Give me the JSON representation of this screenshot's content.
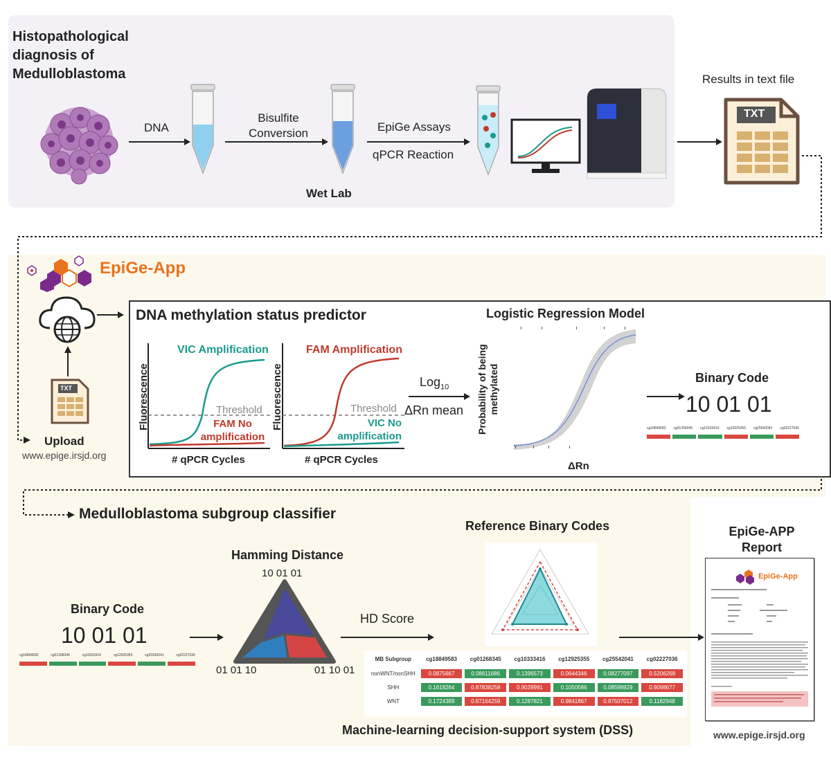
{
  "top": {
    "title": "Histopathological diagnosis of Medulloblastoma",
    "title_lines": [
      "Histopathological",
      "diagnosis of",
      "Medulloblastoma"
    ],
    "step_dna": "DNA",
    "step_bisulfite_1": "Bisulfite",
    "step_bisulfite_2": "Conversion",
    "step_epige": "EpiGe Assays",
    "step_qpcr": "qPCR Reaction",
    "wet_lab": "Wet Lab",
    "results_label": "Results in text file",
    "txt_label": "TXT"
  },
  "app": {
    "logo_text": "EpiGe-App",
    "upload_label": "Upload",
    "upload_url": "www.epige.irsjd.org",
    "txt_label": "TXT",
    "predictor_title": "DNA methylation status predictor",
    "vic_title": "VIC Amplification",
    "fam_title": "FAM Amplification",
    "y_label": "Fluorescence",
    "x_label": "# qPCR Cycles",
    "threshold": "Threshold",
    "fam_no_amp_1": "FAM No",
    "fam_no_amp_2": "amplification",
    "vic_no_amp_1": "VIC No",
    "vic_no_amp_2": "amplification",
    "log_label": "Log",
    "log_sub": "10",
    "drn_mean": "ΔRn mean",
    "lr_title": "Logistic Regression Model",
    "lr_ylabel_1": "Probability of being",
    "lr_ylabel_2": "methylated",
    "lr_xlabel": "ΔRn",
    "binary_code_title": "Binary Code",
    "binary_code_value": "10 01 01"
  },
  "classifier": {
    "title": "Medulloblastoma subgroup classifier",
    "binary_code_title": "Binary Code",
    "binary_code_value": "10 01 01",
    "hamming_title": "Hamming Distance",
    "tri_top": "10 01 01",
    "tri_left": "01 01 10",
    "tri_right": "01 10 01",
    "hd_score": "HD Score",
    "ref_title": "Reference Binary Codes",
    "report_title_1": "EpiGe-APP",
    "report_title_2": "Report",
    "report_logo": "EpiGe-App",
    "dss_title": "Machine-learning decision-support system (DSS)",
    "footer_url": "www.epige.irsjd.org"
  },
  "dss_table": {
    "headers": [
      "MB Subgroup",
      "cg18849583",
      "cg01268345",
      "cg10333416",
      "cg12925355",
      "cg25542041",
      "cg02227036"
    ],
    "rows": [
      {
        "label": "nonWNT/nonSHH",
        "values": [
          "0.0875667",
          "0.08611686",
          "0.1396573",
          "0.0644346",
          "0.08277097",
          "0.5206268"
        ],
        "colors": [
          "red",
          "green",
          "green",
          "red",
          "green",
          "red"
        ]
      },
      {
        "label": "SHH",
        "values": [
          "0.1618264",
          "0.87838258",
          "0.9039991",
          "0.1050586",
          "0.08598929",
          "0.9098677"
        ],
        "colors": [
          "green",
          "red",
          "red",
          "green",
          "green",
          "red"
        ]
      },
      {
        "label": "WNT",
        "values": [
          "0.1724389",
          "0.87164259",
          "0.1287821",
          "0.9841867",
          "0.87507012",
          "0.1182948"
        ],
        "colors": [
          "green",
          "red",
          "green",
          "red",
          "red",
          "green"
        ]
      }
    ]
  },
  "mini_codes": {
    "headers": [
      "cg18849583",
      "cg01268345",
      "cg10333416",
      "cg12925355",
      "cg25542041",
      "cg02227036"
    ],
    "colors": [
      "red",
      "green",
      "green",
      "red",
      "green",
      "red"
    ]
  },
  "colors": {
    "teal": "#1a9a8c",
    "red": "#c0392b",
    "orange": "#e8731d",
    "purple": "#7b2a8c",
    "green_cell": "#3a9a5c",
    "red_cell": "#d9473f"
  }
}
